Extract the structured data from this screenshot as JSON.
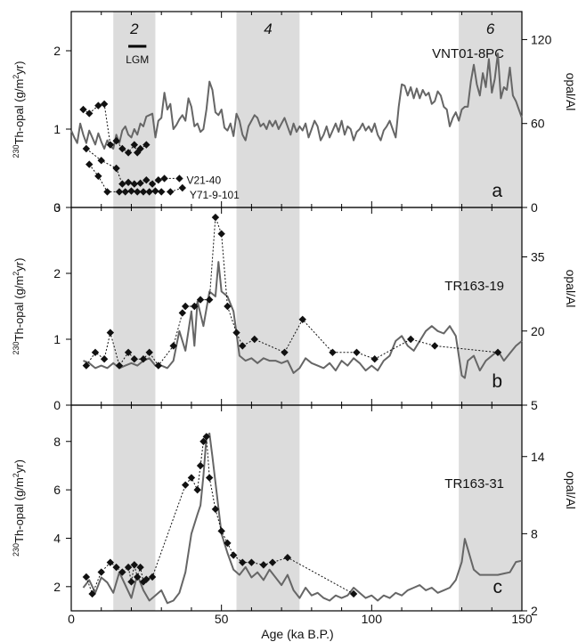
{
  "chart_data": {
    "type": "line",
    "x_axis": {
      "label": "Age (ka B.P.)",
      "range": [
        0,
        150
      ],
      "ticks": [
        0,
        50,
        100,
        150
      ]
    },
    "shading": {
      "intervals": [
        {
          "label": "2",
          "range": [
            14,
            28
          ]
        },
        {
          "label": "4",
          "range": [
            55,
            76
          ]
        },
        {
          "label": "6",
          "range": [
            129,
            150
          ]
        }
      ],
      "lgm_label": "LGM",
      "lgm_range": [
        19,
        25
      ]
    },
    "panels": [
      {
        "letter": "a",
        "core_label": "VNT01-8PC",
        "left_axis": {
          "label_sup": "230",
          "label_rest": "Th-opal (g/m",
          "label_sup2": "2",
          "label_end": "yr)",
          "range": [
            0,
            2.5
          ],
          "ticks": [
            0,
            1,
            2
          ]
        },
        "right_axis": {
          "label": "opal/Al",
          "range": [
            0,
            140
          ],
          "ticks": [
            0,
            60,
            120
          ]
        },
        "line_series": {
          "name": "opal/Al",
          "axis": "right",
          "x": [
            0,
            1,
            2,
            3,
            4,
            5,
            6,
            7,
            8,
            9,
            10,
            11,
            12,
            13,
            14,
            15,
            16,
            17,
            18,
            19,
            20,
            21,
            22,
            23,
            24,
            25,
            26,
            27,
            28,
            29,
            30,
            31,
            32,
            33,
            34,
            35,
            36,
            37,
            38,
            39,
            40,
            41,
            42,
            43,
            44,
            45,
            46,
            47,
            48,
            49,
            50,
            51,
            52,
            53,
            54,
            55,
            56,
            57,
            58,
            59,
            60,
            61,
            62,
            63,
            64,
            65,
            66,
            67,
            68,
            69,
            70,
            71,
            72,
            73,
            74,
            75,
            76,
            77,
            78,
            79,
            80,
            81,
            82,
            83,
            84,
            85,
            86,
            87,
            88,
            89,
            90,
            91,
            92,
            93,
            94,
            95,
            96,
            97,
            98,
            99,
            100,
            101,
            102,
            103,
            104,
            105,
            106,
            107,
            108,
            109,
            110,
            111,
            112,
            113,
            114,
            115,
            116,
            117,
            118,
            119,
            120,
            121,
            122,
            123,
            124,
            125,
            126,
            127,
            128,
            129,
            130,
            131,
            132,
            133,
            134,
            135,
            136,
            137,
            138,
            139,
            140,
            141,
            142,
            143,
            144,
            145,
            146,
            147,
            148,
            149,
            150
          ],
          "y": [
            55,
            50,
            46,
            60,
            52,
            46,
            55,
            50,
            45,
            53,
            47,
            42,
            48,
            44,
            42,
            52,
            46,
            55,
            58,
            52,
            50,
            56,
            52,
            60,
            58,
            65,
            66,
            67,
            50,
            62,
            64,
            82,
            70,
            74,
            56,
            59,
            63,
            66,
            62,
            78,
            72,
            58,
            60,
            54,
            56,
            70,
            90,
            84,
            68,
            66,
            70,
            57,
            55,
            60,
            51,
            67,
            62,
            52,
            48,
            58,
            62,
            66,
            64,
            58,
            60,
            56,
            62,
            58,
            62,
            56,
            60,
            64,
            58,
            52,
            60,
            54,
            58,
            55,
            60,
            50,
            56,
            62,
            58,
            48,
            52,
            58,
            50,
            55,
            60,
            54,
            62,
            52,
            58,
            56,
            48,
            54,
            56,
            60,
            55,
            58,
            54,
            60,
            52,
            48,
            55,
            58,
            62,
            56,
            50,
            72,
            88,
            87,
            80,
            86,
            78,
            85,
            78,
            84,
            80,
            82,
            74,
            76,
            83,
            80,
            72,
            70,
            58,
            64,
            68,
            62,
            70,
            72,
            72,
            90,
            102,
            88,
            80,
            96,
            86,
            106,
            82,
            92,
            110,
            78,
            86,
            84,
            100,
            80,
            76,
            70,
            64
          ]
        },
        "point_series": [
          {
            "name": "",
            "axis": "left",
            "x": [
              4,
              6,
              9,
              11,
              13,
              15,
              17,
              19,
              21,
              22,
              23,
              25
            ],
            "y": [
              1.25,
              1.2,
              1.3,
              1.32,
              0.8,
              0.85,
              0.75,
              0.7,
              0.8,
              0.7,
              0.75,
              0.8
            ]
          },
          {
            "name": "V21-40",
            "axis": "left",
            "x": [
              5,
              10,
              15,
              17,
              19,
              21,
              23,
              25,
              27,
              29,
              31,
              36
            ],
            "y": [
              0.75,
              0.6,
              0.5,
              0.3,
              0.32,
              0.3,
              0.31,
              0.35,
              0.3,
              0.35,
              0.37,
              0.37
            ]
          },
          {
            "name": "Y71-9-101",
            "axis": "left",
            "x": [
              6,
              9,
              12,
              16,
              18,
              20,
              22,
              24,
              26,
              28,
              30,
              33,
              37
            ],
            "y": [
              0.55,
              0.4,
              0.2,
              0.2,
              0.2,
              0.21,
              0.2,
              0.2,
              0.2,
              0.21,
              0.2,
              0.2,
              0.25
            ]
          }
        ]
      },
      {
        "letter": "b",
        "core_label": "TR163-19",
        "left_axis": {
          "label_sup": "230",
          "label_rest": "Th-opal (g/m",
          "label_sup2": "2",
          "label_end": "yr)",
          "range": [
            0,
            3
          ],
          "ticks": [
            0,
            1,
            2,
            3
          ]
        },
        "right_axis": {
          "label": "opal/Al",
          "range": [
            5,
            45
          ],
          "ticks": [
            5,
            20,
            35
          ]
        },
        "line_series": {
          "name": "opal/Al",
          "axis": "right",
          "x": [
            4,
            6,
            8,
            10,
            12,
            14,
            16,
            18,
            20,
            22,
            24,
            26,
            28,
            30,
            32,
            34,
            36,
            38,
            40,
            41,
            42,
            44,
            46,
            48,
            49,
            50,
            52,
            54,
            56,
            58,
            60,
            62,
            64,
            66,
            68,
            70,
            72,
            74,
            76,
            78,
            80,
            82,
            84,
            86,
            88,
            90,
            92,
            94,
            96,
            98,
            100,
            102,
            104,
            106,
            108,
            110,
            112,
            114,
            116,
            118,
            120,
            122,
            124,
            126,
            128,
            130,
            131,
            132,
            134,
            136,
            138,
            140,
            142,
            144,
            146,
            148,
            150
          ],
          "y": [
            14,
            13.5,
            12.5,
            13,
            12.5,
            13.5,
            12.5,
            13,
            13.5,
            13,
            14,
            14.5,
            13,
            13,
            12.5,
            14,
            20,
            16,
            24,
            17,
            26,
            21,
            28,
            27,
            34,
            28,
            27,
            24,
            15,
            14,
            14.5,
            13.5,
            14.5,
            14,
            14,
            13.5,
            14,
            11.5,
            12.5,
            14.5,
            13.5,
            13,
            12.5,
            13.5,
            12,
            14,
            13,
            14.5,
            13.5,
            12,
            13,
            12,
            14,
            15,
            18,
            19,
            17,
            16,
            18,
            20,
            21,
            20,
            19.5,
            21,
            19,
            11,
            10.5,
            14,
            15,
            12,
            14,
            15,
            16,
            14,
            15.5,
            17,
            18
          ]
        },
        "point_series": [
          {
            "name": "",
            "axis": "left",
            "x": [
              5,
              8,
              11,
              13,
              16,
              19,
              21,
              24,
              26,
              29,
              34,
              37,
              38,
              41,
              43,
              46,
              48,
              50,
              52,
              55,
              57,
              61,
              71,
              77,
              87,
              95,
              101,
              113,
              121,
              142
            ],
            "y": [
              0.6,
              0.8,
              0.7,
              1.1,
              0.6,
              0.8,
              0.7,
              0.7,
              0.8,
              0.6,
              0.9,
              1.4,
              1.5,
              1.5,
              1.6,
              1.6,
              2.85,
              2.6,
              1.5,
              1.1,
              0.9,
              1.0,
              0.8,
              1.3,
              0.8,
              0.8,
              0.7,
              1.0,
              0.9,
              0.8
            ]
          }
        ]
      },
      {
        "letter": "c",
        "core_label": "TR163-31",
        "left_axis": {
          "label_sup": "230",
          "label_rest": "Th-opal (g/m",
          "label_sup2": "2",
          "label_end": "yr)",
          "range": [
            1,
            9.5
          ],
          "ticks": [
            2,
            4,
            6,
            8
          ]
        },
        "right_axis": {
          "label": "opal/Al",
          "range": [
            2,
            18
          ],
          "ticks": [
            2,
            8,
            14
          ]
        },
        "line_series": {
          "name": "opal/Al",
          "axis": "right",
          "x": [
            4,
            6,
            8,
            10,
            12,
            14,
            16,
            18,
            20,
            22,
            24,
            26,
            28,
            30,
            32,
            34,
            36,
            38,
            40,
            42,
            43,
            44,
            45,
            46,
            47,
            48,
            50,
            52,
            54,
            56,
            58,
            60,
            62,
            64,
            66,
            68,
            70,
            72,
            74,
            76,
            78,
            80,
            82,
            84,
            86,
            88,
            90,
            92,
            94,
            96,
            98,
            100,
            102,
            104,
            106,
            108,
            110,
            112,
            114,
            116,
            118,
            120,
            122,
            124,
            126,
            128,
            130,
            131,
            132,
            134,
            136,
            138,
            140,
            142,
            144,
            146,
            148,
            150
          ],
          "y": [
            3.8,
            4.4,
            3.4,
            4.6,
            4.2,
            3.4,
            5.0,
            4.0,
            3.0,
            4.8,
            3.6,
            2.8,
            3.2,
            3.6,
            2.6,
            2.8,
            3.4,
            5.0,
            8.0,
            9.5,
            10.2,
            12.5,
            15.5,
            15.8,
            14.0,
            12.0,
            8.0,
            6.5,
            5.2,
            4.8,
            5.4,
            4.6,
            5.0,
            4.4,
            5.2,
            4.6,
            4.0,
            4.8,
            3.6,
            3.0,
            3.8,
            3.2,
            3.4,
            3.0,
            2.8,
            3.2,
            3.0,
            3.2,
            3.8,
            3.4,
            3.0,
            3.2,
            2.8,
            3.2,
            3.0,
            3.4,
            3.2,
            3.6,
            3.8,
            4.0,
            3.6,
            3.8,
            3.4,
            3.6,
            3.8,
            4.4,
            5.8,
            7.6,
            6.8,
            5.2,
            4.8,
            4.8,
            4.8,
            4.8,
            4.9,
            5.0,
            5.8,
            5.9
          ]
        },
        "point_series": [
          {
            "name": "",
            "axis": "left",
            "x": [
              5,
              7,
              10,
              13,
              15,
              17,
              19,
              20,
              21,
              22,
              23,
              24,
              25,
              27,
              38,
              40,
              42,
              43,
              44,
              45,
              46,
              48,
              50,
              52,
              54,
              57,
              60,
              64,
              67,
              72,
              94
            ],
            "y": [
              2.4,
              1.7,
              2.6,
              3.0,
              2.8,
              2.6,
              2.8,
              2.2,
              2.9,
              2.4,
              2.8,
              2.2,
              2.3,
              2.4,
              6.2,
              6.5,
              6.0,
              7.0,
              8.0,
              8.2,
              6.5,
              5.2,
              4.3,
              3.8,
              3.3,
              3.0,
              3.0,
              2.9,
              3.0,
              3.2,
              1.7
            ]
          }
        ]
      }
    ]
  }
}
